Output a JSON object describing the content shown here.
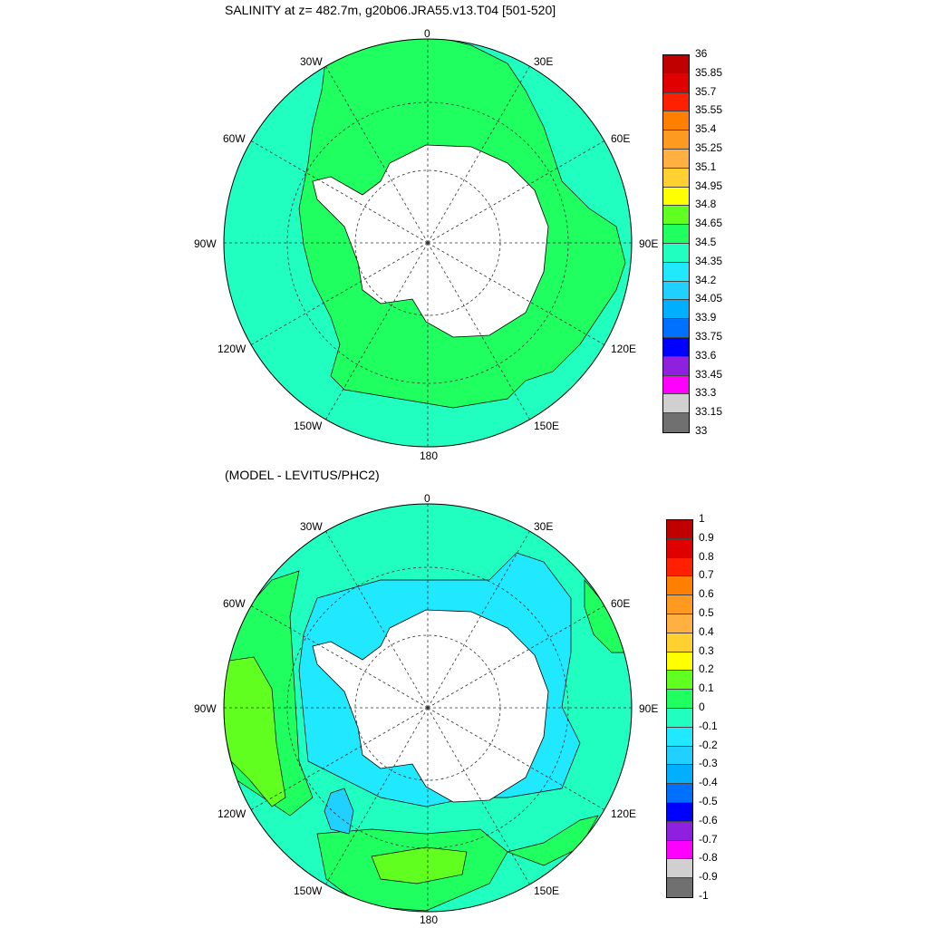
{
  "panels": [
    {
      "title": "SALINITY at z= 482.7m, g20b06.JRA55.v13.T04 [501-520]",
      "colorbar": {
        "labels": [
          "36",
          "35.85",
          "35.7",
          "35.55",
          "35.4",
          "35.25",
          "35.1",
          "34.95",
          "34.8",
          "34.65",
          "34.5",
          "34.35",
          "34.2",
          "34.05",
          "33.9",
          "33.75",
          "33.6",
          "33.45",
          "33.3",
          "33.15",
          "33"
        ],
        "colors": [
          "#c00000",
          "#e00000",
          "#ff2000",
          "#ff8000",
          "#ff9a20",
          "#ffb040",
          "#ffd030",
          "#ffff00",
          "#60ff20",
          "#20ff60",
          "#20ffc0",
          "#20e8ff",
          "#20d0ff",
          "#00b0ff",
          "#0070ff",
          "#0000ff",
          "#9020e0",
          "#ff00ff",
          "#d0d0d0",
          "#707070"
        ]
      },
      "lon_labels": [
        "0",
        "30E",
        "60E",
        "90E",
        "120E",
        "150E",
        "180",
        "150W",
        "120W",
        "90W",
        "60W",
        "30W"
      ]
    },
    {
      "title": "(MODEL - LEVITUS/PHC2)",
      "colorbar": {
        "labels": [
          "1",
          "0.9",
          "0.8",
          "0.7",
          "0.6",
          "0.5",
          "0.4",
          "0.3",
          "0.2",
          "0.1",
          "0",
          "-0.1",
          "-0.2",
          "-0.3",
          "-0.4",
          "-0.5",
          "-0.6",
          "-0.7",
          "-0.8",
          "-0.9",
          "-1"
        ],
        "colors": [
          "#c00000",
          "#e00000",
          "#ff2000",
          "#ff8000",
          "#ff9a20",
          "#ffb040",
          "#ffd030",
          "#ffff00",
          "#60ff20",
          "#20ff60",
          "#20ffc0",
          "#20e8ff",
          "#20d0ff",
          "#00b0ff",
          "#0070ff",
          "#0000ff",
          "#9020e0",
          "#ff00ff",
          "#d0d0d0",
          "#707070"
        ]
      },
      "lon_labels": [
        "0",
        "30E",
        "60E",
        "90E",
        "120E",
        "150E",
        "180",
        "150W",
        "120W",
        "90W",
        "60W",
        "30W"
      ]
    }
  ]
}
